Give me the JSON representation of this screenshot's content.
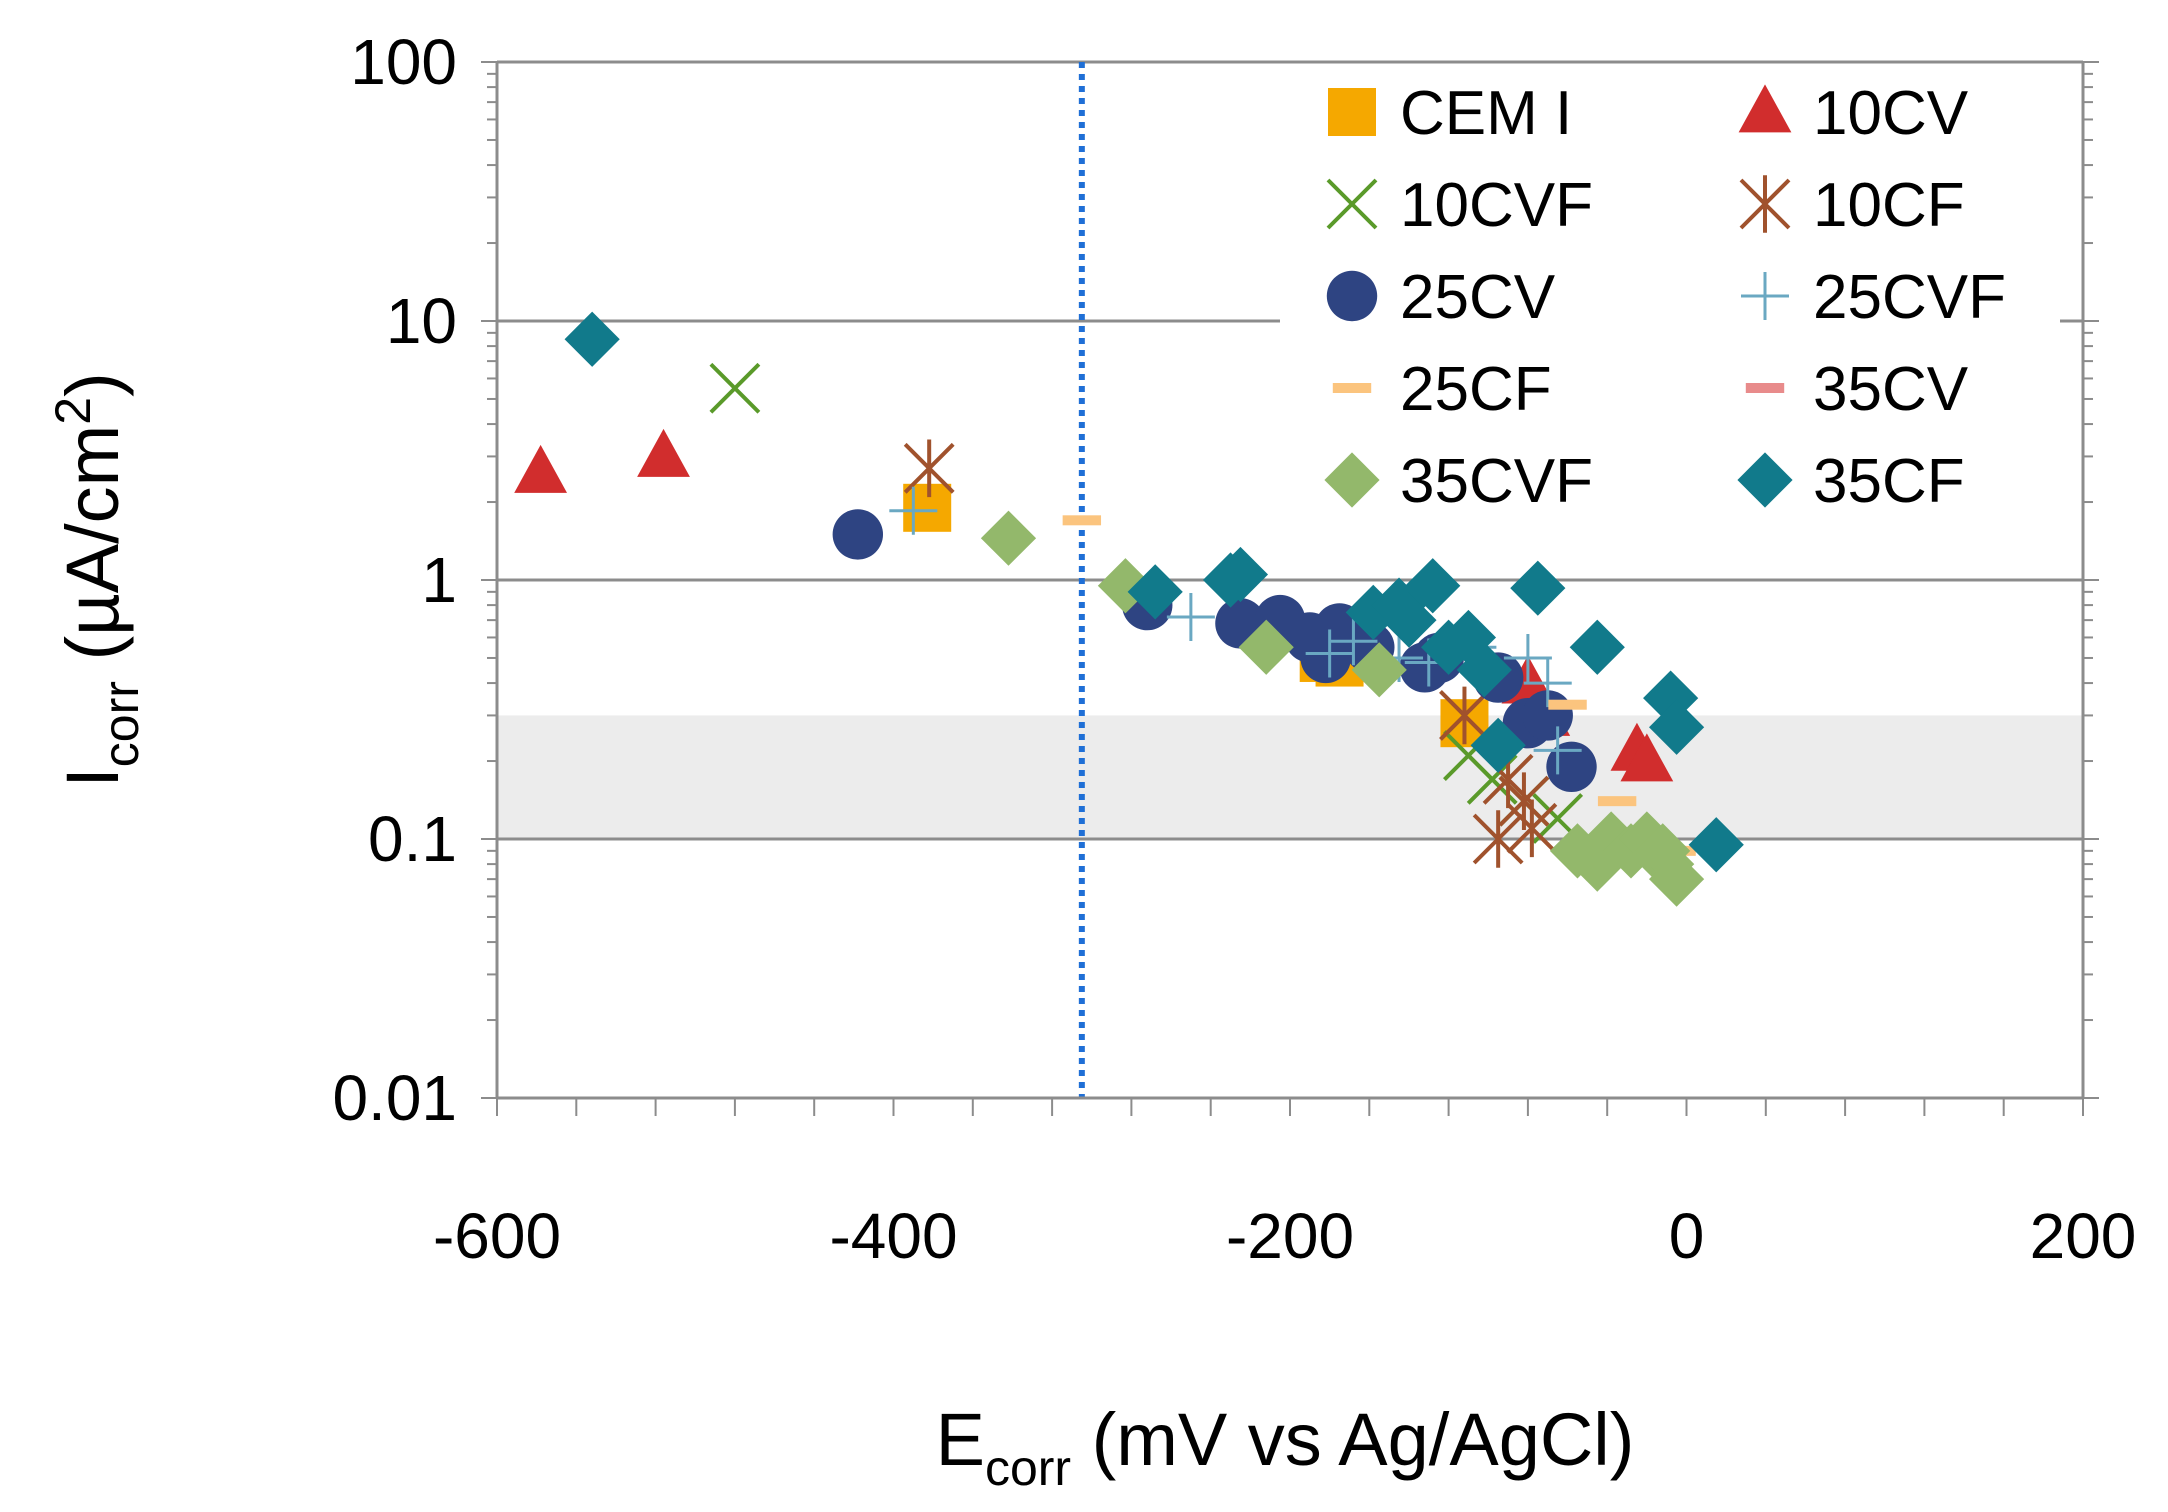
{
  "chart_data": {
    "type": "scatter",
    "xlabel": {
      "main": "E",
      "sub": "corr",
      "rest": " (mV vs Ag/AgCl)"
    },
    "ylabel": {
      "main": "I",
      "sub": "corr",
      "rest": " (µA/cm",
      "sup": "2",
      "end": ")"
    },
    "xlim": [
      -600,
      200
    ],
    "ylim": [
      0.01,
      100
    ],
    "y_scale": "log",
    "x_ticks": [
      "-600",
      "-400",
      "-200",
      "0",
      "200"
    ],
    "x_tick_values": [
      -600,
      -400,
      -200,
      0,
      200
    ],
    "y_ticks": [
      "0.01",
      "0.1",
      "1",
      "10",
      "100"
    ],
    "y_tick_values": [
      0.01,
      0.1,
      1,
      10,
      100
    ],
    "grid": "horizontal major",
    "shaded_band": {
      "y_from": 0.1,
      "y_to": 0.3,
      "color": "#ececec"
    },
    "reference_line": {
      "x": -305,
      "style": "dotted",
      "color": "#1f6fd6"
    },
    "legend_position": "top-right",
    "series": [
      {
        "name": "CEM I",
        "marker": "square",
        "color": "#f5a800",
        "x": [
          -383,
          -183,
          -175,
          -112
        ],
        "y": [
          1.9,
          0.5,
          0.48,
          0.28
        ]
      },
      {
        "name": "10CV",
        "marker": "triangle",
        "color": "#d12d2d",
        "x": [
          -578,
          -516,
          -80,
          -72,
          -25,
          -20
        ],
        "y": [
          2.6,
          3.0,
          0.4,
          0.3,
          0.22,
          0.2
        ]
      },
      {
        "name": "10CVF",
        "marker": "x",
        "color": "#5a9a2a",
        "x": [
          -480,
          -110,
          -98,
          -82,
          -65
        ],
        "y": [
          5.5,
          0.21,
          0.17,
          0.14,
          0.12
        ]
      },
      {
        "name": "10CF",
        "marker": "asterisk",
        "color": "#a0522d",
        "x": [
          -382,
          -112,
          -95,
          -90,
          -82,
          -78
        ],
        "y": [
          2.7,
          0.3,
          0.1,
          0.17,
          0.14,
          0.11
        ]
      },
      {
        "name": "25CV",
        "marker": "circle",
        "color": "#2e4482",
        "x": [
          -418,
          -272,
          -225,
          -205,
          -190,
          -182,
          -175,
          -168,
          -160,
          -132,
          -125,
          -95,
          -80,
          -70,
          -58
        ],
        "y": [
          1.5,
          0.8,
          0.68,
          0.7,
          0.6,
          0.5,
          0.65,
          0.62,
          0.55,
          0.46,
          0.5,
          0.42,
          0.28,
          0.3,
          0.19
        ]
      },
      {
        "name": "25CVF",
        "marker": "plus",
        "color": "#6aa8c2",
        "x": [
          -390,
          -250,
          -180,
          -168,
          -145,
          -130,
          -108,
          -80,
          -70,
          -65
        ],
        "y": [
          1.85,
          0.72,
          0.52,
          0.58,
          0.5,
          0.48,
          0.55,
          0.5,
          0.4,
          0.22
        ]
      },
      {
        "name": "25CF",
        "marker": "dash",
        "color": "#fbc47e",
        "x": [
          -305,
          -60,
          -35,
          -5
        ],
        "y": [
          1.7,
          0.33,
          0.14,
          0.09
        ]
      },
      {
        "name": "35CV",
        "marker": "dash",
        "color": "#e88b8b",
        "x": [],
        "y": []
      },
      {
        "name": "35CVF",
        "marker": "diamond",
        "color": "#93b86b",
        "x": [
          -342,
          -283,
          -212,
          -155,
          -55,
          -45,
          -38,
          -28,
          -20,
          -10,
          -5,
          -12
        ],
        "y": [
          1.45,
          0.95,
          0.55,
          0.45,
          0.09,
          0.08,
          0.1,
          0.09,
          0.1,
          0.08,
          0.07,
          0.09
        ]
      },
      {
        "name": "35CF",
        "marker": "diamond",
        "color": "#117a8b",
        "x": [
          -552,
          -268,
          -230,
          -225,
          -158,
          -145,
          -140,
          -128,
          -110,
          -102,
          -95,
          -75,
          -45,
          -8,
          -5,
          15,
          -120
        ],
        "y": [
          8.5,
          0.9,
          1.0,
          1.05,
          0.75,
          0.8,
          0.7,
          0.95,
          0.6,
          0.45,
          0.23,
          0.93,
          0.55,
          0.35,
          0.27,
          0.095,
          0.55
        ]
      }
    ]
  }
}
